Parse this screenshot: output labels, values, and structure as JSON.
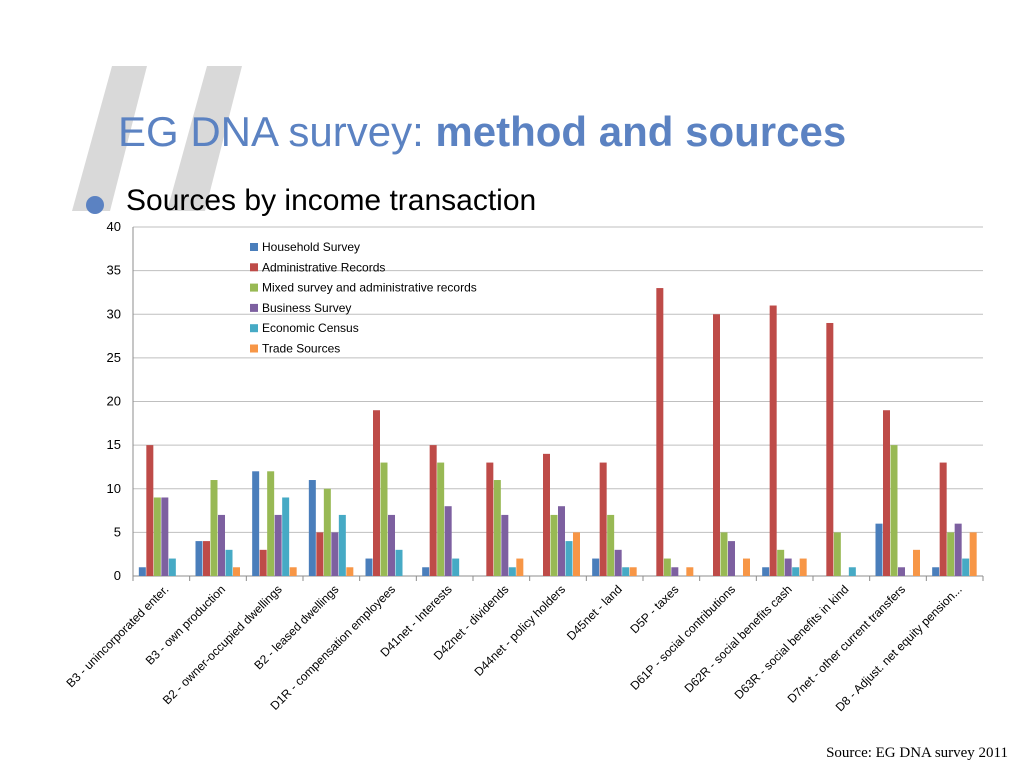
{
  "slide": {
    "title_regular": "EG DNA survey: ",
    "title_bold": "method and sources",
    "bullet": "Sources by income transaction",
    "source_note": "Source: EG DNA survey 2011"
  },
  "colors": {
    "accent": "#5b82c2",
    "quote_decoration": "#d9d9d9"
  },
  "chart_data": {
    "type": "bar",
    "title": "",
    "xlabel": "",
    "ylabel": "",
    "ylim": [
      0,
      40
    ],
    "yticks": [
      0,
      5,
      10,
      15,
      20,
      25,
      30,
      35,
      40
    ],
    "grid": true,
    "legend_position": "top-left",
    "categories": [
      "B3 - unincorporated enter.",
      "B3 - own production",
      "B2 - owner-occupied dwellings",
      "B2 - leased dwellings",
      "D1R - compensation employees",
      "D41net - Interests",
      "D42net - dividends",
      "D44net - policy holders",
      "D45net - land",
      "D5P - taxes",
      "D61P - social contributions",
      "D62R - social benefits cash",
      "D63R - social benefits in kind",
      "D7net - other current transfers",
      "D8 - Adjust. net equity pension..."
    ],
    "series": [
      {
        "name": "Household Survey",
        "color": "#4a7ebb",
        "values": [
          1,
          4,
          12,
          11,
          2,
          1,
          0,
          0,
          2,
          0,
          0,
          1,
          0,
          6,
          1
        ]
      },
      {
        "name": "Administrative Records",
        "color": "#be4b48",
        "values": [
          15,
          4,
          3,
          5,
          19,
          15,
          13,
          14,
          13,
          33,
          30,
          31,
          29,
          19,
          13
        ]
      },
      {
        "name": "Mixed survey and administrative records",
        "color": "#98b954",
        "values": [
          9,
          11,
          12,
          10,
          13,
          13,
          11,
          7,
          7,
          2,
          5,
          3,
          5,
          15,
          5
        ]
      },
      {
        "name": "Business Survey",
        "color": "#7d60a0",
        "values": [
          9,
          7,
          7,
          5,
          7,
          8,
          7,
          8,
          3,
          1,
          4,
          2,
          0,
          1,
          6
        ]
      },
      {
        "name": "Economic Census",
        "color": "#46aac5",
        "values": [
          2,
          3,
          9,
          7,
          3,
          2,
          1,
          4,
          1,
          0,
          0,
          1,
          1,
          0,
          2
        ]
      },
      {
        "name": "Trade Sources",
        "color": "#f79646",
        "values": [
          0,
          1,
          1,
          1,
          0,
          0,
          2,
          5,
          1,
          1,
          2,
          2,
          0,
          3,
          5
        ]
      }
    ]
  }
}
